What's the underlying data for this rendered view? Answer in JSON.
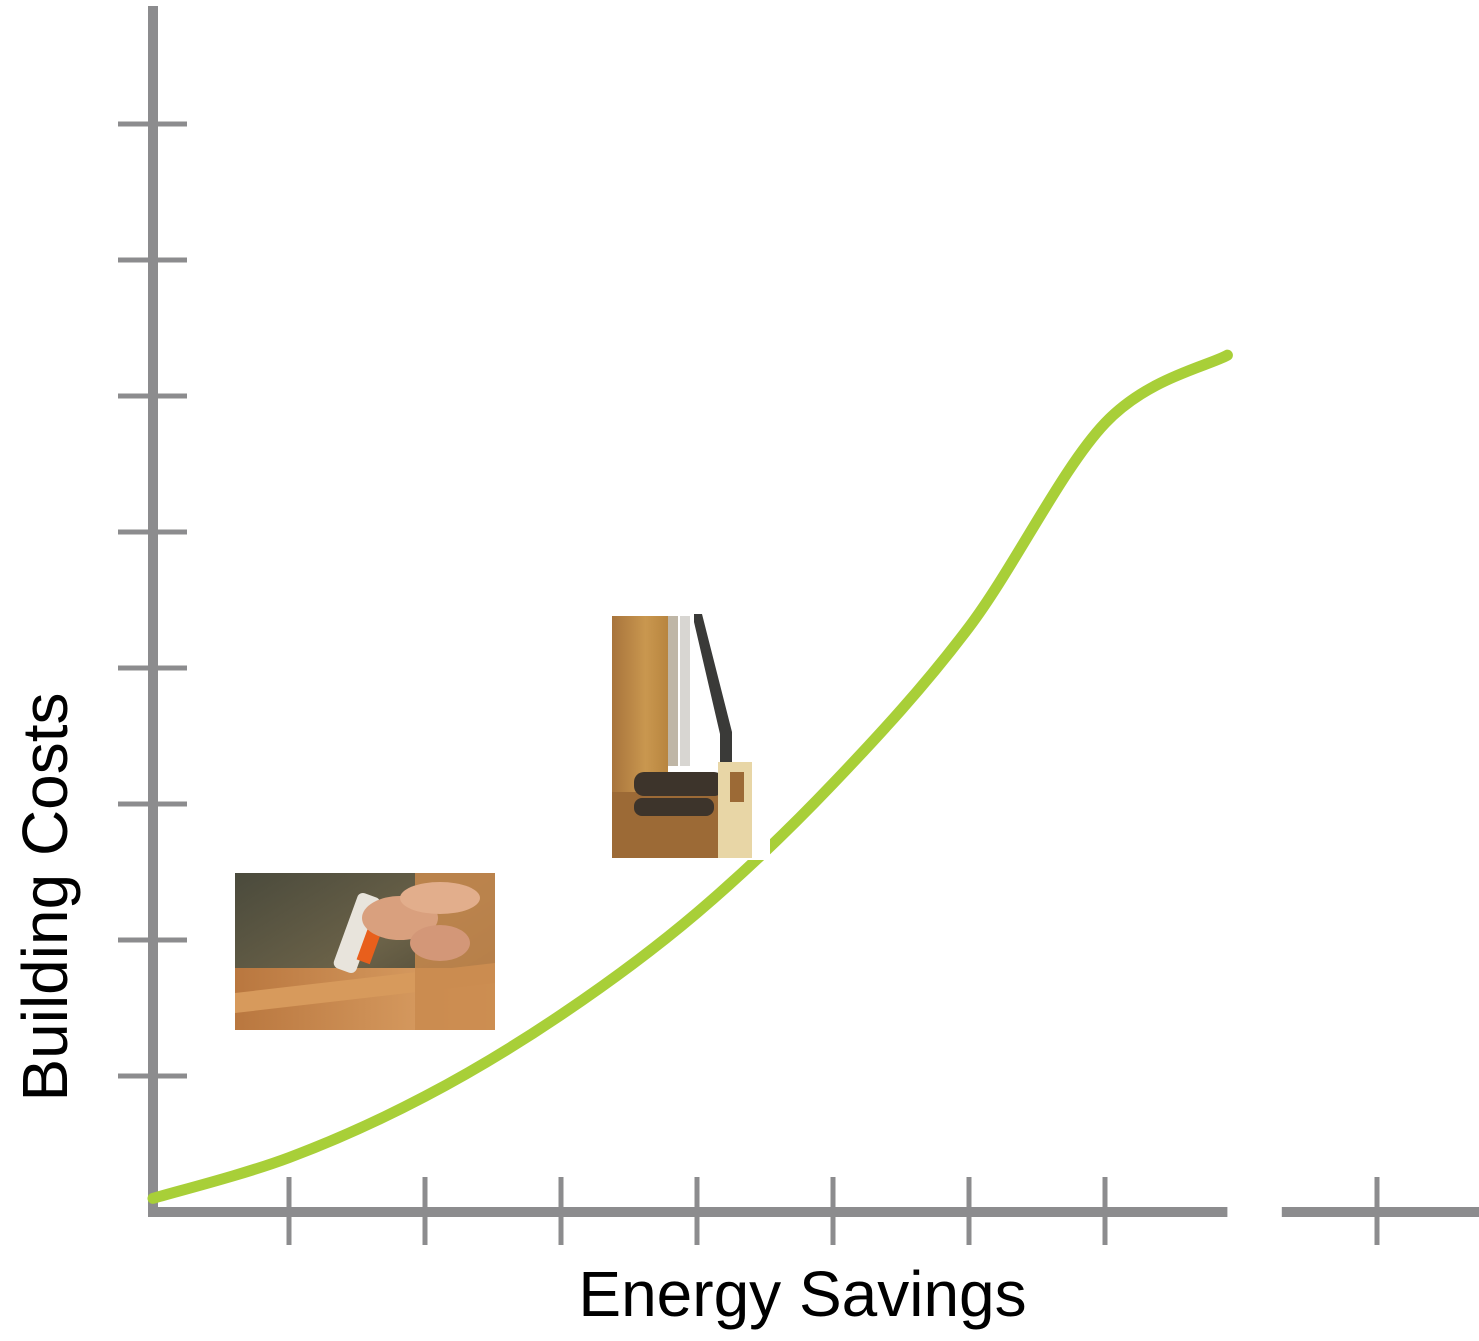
{
  "chart_data": {
    "type": "line",
    "title": "",
    "xlabel": "Energy Savings",
    "ylabel": "Building Costs",
    "xlim": [
      0,
      10
    ],
    "ylim": [
      0,
      8
    ],
    "x_ticks": [
      1,
      2,
      3,
      4,
      5,
      6,
      7,
      9
    ],
    "y_ticks": [
      1,
      2,
      3,
      4,
      5,
      6,
      7,
      8
    ],
    "x_axis_break": [
      7.9,
      8.3
    ],
    "tick_labels_shown": false,
    "grid": false,
    "series": [
      {
        "color": "#a8cf38",
        "shape": "convex-increasing",
        "x": [
          0,
          1,
          2,
          3,
          4,
          5,
          6,
          7,
          7.9
        ],
        "y": [
          0.1,
          0.4,
          0.85,
          1.45,
          2.2,
          3.15,
          4.3,
          5.8,
          6.3
        ]
      }
    ],
    "images": [
      {
        "name": "caulking-window-photo",
        "x": [
          0.6,
          2.5
        ],
        "y": [
          1.3,
          2.5
        ]
      },
      {
        "name": "wood-window-frame-section",
        "x": [
          3.4,
          4.6
        ],
        "y": [
          2.6,
          4.4
        ]
      }
    ]
  },
  "colors": {
    "axis": "#8c8c8e",
    "curve": "#a8cf38",
    "text": "#000000"
  }
}
